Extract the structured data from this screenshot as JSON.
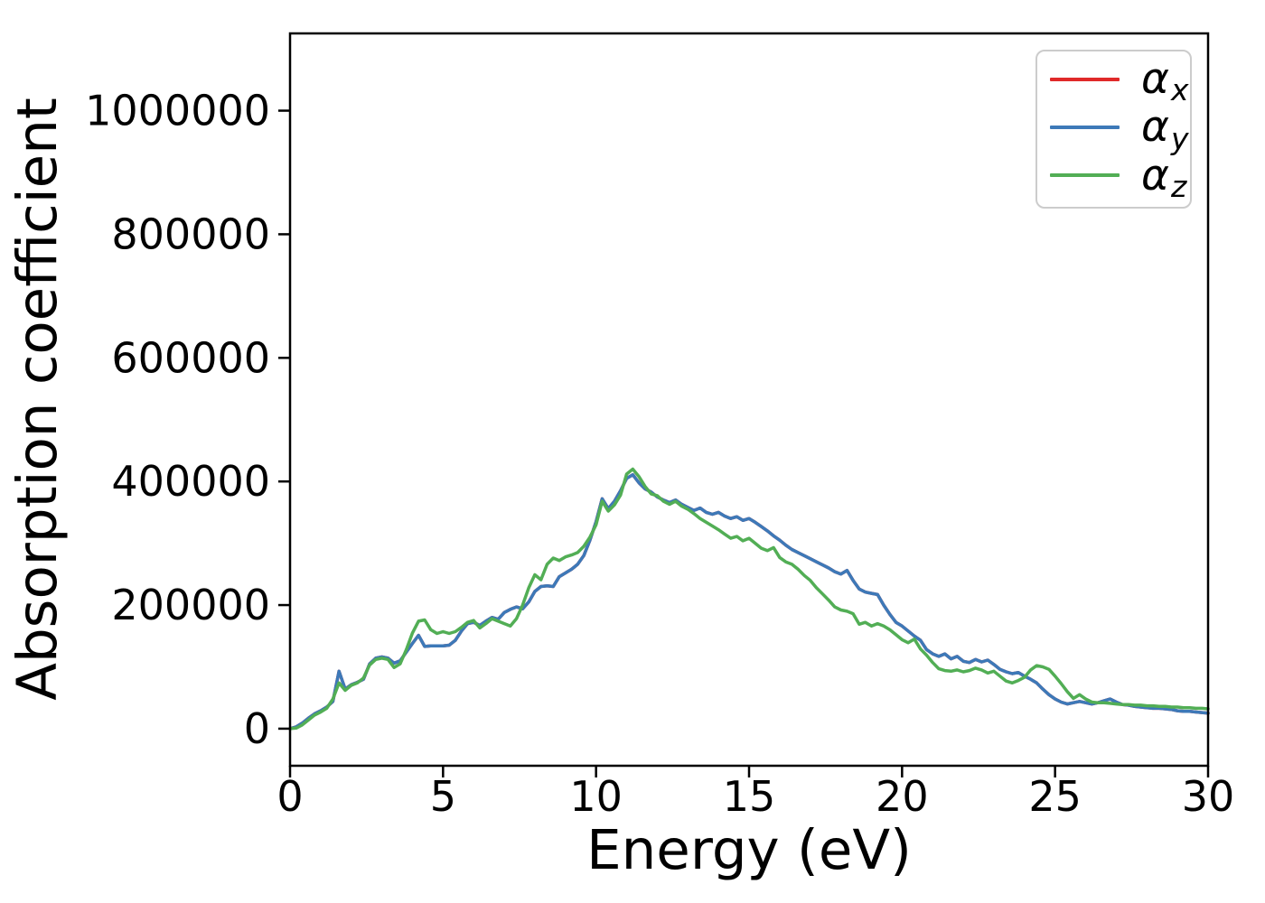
{
  "figure": {
    "background": "#ffffff",
    "text_color": "#000000",
    "spine_color": "#000000"
  },
  "chart_data": {
    "type": "line",
    "title": "",
    "xlabel": "Energy (eV)",
    "ylabel": "Absorption coefficient",
    "xlim": [
      0,
      30
    ],
    "ylim": [
      -60000,
      1125000
    ],
    "xticks": [
      0,
      5,
      10,
      15,
      20,
      25,
      30
    ],
    "yticks": [
      0,
      200000,
      400000,
      600000,
      800000,
      1000000
    ],
    "grid": false,
    "legend_position": "upper right",
    "x": {
      "start": 0,
      "step": 0.2,
      "count": 151
    },
    "series": [
      {
        "name_base": "α",
        "name_sub": "x",
        "color": "#e02929",
        "values": [
          0,
          3000,
          9000,
          17000,
          24000,
          29000,
          35000,
          44000,
          93000,
          64000,
          71000,
          75000,
          80000,
          105000,
          114000,
          116000,
          114000,
          106000,
          110000,
          124000,
          138000,
          151000,
          133000,
          134000,
          134000,
          134000,
          135000,
          143000,
          158000,
          170000,
          172000,
          167000,
          174000,
          180000,
          177000,
          188000,
          193000,
          197000,
          194000,
          205000,
          222000,
          230000,
          231000,
          230000,
          246000,
          252000,
          258000,
          266000,
          280000,
          305000,
          335000,
          372000,
          356000,
          368000,
          385000,
          405000,
          411000,
          398000,
          388000,
          383000,
          375000,
          370000,
          366000,
          370000,
          363000,
          358000,
          353000,
          357000,
          350000,
          347000,
          350000,
          344000,
          340000,
          343000,
          337000,
          340000,
          334000,
          327000,
          320000,
          312000,
          305000,
          297000,
          290000,
          285000,
          280000,
          275000,
          270000,
          265000,
          260000,
          254000,
          250000,
          256000,
          240000,
          226000,
          221000,
          219000,
          217000,
          200000,
          185000,
          172000,
          166000,
          158000,
          150000,
          143000,
          128000,
          121000,
          117000,
          121000,
          113000,
          117000,
          109000,
          107000,
          112000,
          108000,
          111000,
          104000,
          96000,
          92000,
          89000,
          91000,
          85000,
          80000,
          74000,
          64000,
          55000,
          48000,
          43000,
          40000,
          42000,
          44000,
          42000,
          40000,
          42000,
          45000,
          48000,
          43000,
          39000,
          38000,
          36000,
          35000,
          34000,
          33000,
          33000,
          32000,
          31000,
          29000,
          28000,
          28000,
          27000,
          26000,
          25000
        ]
      },
      {
        "name_base": "α",
        "name_sub": "y",
        "color": "#3d79b8",
        "values": [
          0,
          3000,
          9000,
          17000,
          24000,
          29000,
          35000,
          44000,
          93000,
          64000,
          71000,
          75000,
          80000,
          105000,
          114000,
          116000,
          114000,
          106000,
          110000,
          124000,
          138000,
          151000,
          133000,
          134000,
          134000,
          134000,
          135000,
          143000,
          158000,
          170000,
          172000,
          167000,
          174000,
          180000,
          177000,
          188000,
          193000,
          197000,
          194000,
          205000,
          222000,
          230000,
          231000,
          230000,
          246000,
          252000,
          258000,
          266000,
          280000,
          305000,
          335000,
          372000,
          356000,
          368000,
          385000,
          405000,
          411000,
          398000,
          388000,
          383000,
          375000,
          370000,
          366000,
          370000,
          363000,
          358000,
          353000,
          357000,
          350000,
          347000,
          350000,
          344000,
          340000,
          343000,
          337000,
          340000,
          334000,
          327000,
          320000,
          312000,
          305000,
          297000,
          290000,
          285000,
          280000,
          275000,
          270000,
          265000,
          260000,
          254000,
          250000,
          256000,
          240000,
          226000,
          221000,
          219000,
          217000,
          200000,
          185000,
          172000,
          166000,
          158000,
          150000,
          143000,
          128000,
          121000,
          117000,
          121000,
          113000,
          117000,
          109000,
          107000,
          112000,
          108000,
          111000,
          104000,
          96000,
          92000,
          89000,
          91000,
          85000,
          80000,
          74000,
          64000,
          55000,
          48000,
          43000,
          40000,
          42000,
          44000,
          42000,
          40000,
          42000,
          45000,
          48000,
          43000,
          39000,
          38000,
          36000,
          35000,
          34000,
          33000,
          33000,
          32000,
          31000,
          29000,
          28000,
          28000,
          27000,
          26000,
          25000
        ]
      },
      {
        "name_base": "α",
        "name_sub": "z",
        "color": "#52ae55",
        "values": [
          0,
          1000,
          6000,
          14000,
          22000,
          27000,
          33000,
          48000,
          74000,
          62000,
          70000,
          74000,
          82000,
          103000,
          112000,
          114000,
          112000,
          99000,
          105000,
          128000,
          155000,
          174000,
          176000,
          160000,
          154000,
          157000,
          154000,
          157000,
          164000,
          172000,
          175000,
          163000,
          170000,
          178000,
          174000,
          170000,
          166000,
          178000,
          200000,
          228000,
          249000,
          241000,
          266000,
          276000,
          272000,
          278000,
          281000,
          285000,
          295000,
          310000,
          330000,
          368000,
          352000,
          362000,
          378000,
          412000,
          420000,
          408000,
          392000,
          380000,
          377000,
          368000,
          363000,
          368000,
          360000,
          355000,
          348000,
          340000,
          334000,
          328000,
          322000,
          315000,
          308000,
          311000,
          304000,
          308000,
          300000,
          292000,
          288000,
          293000,
          277000,
          270000,
          266000,
          258000,
          248000,
          240000,
          228000,
          218000,
          208000,
          197000,
          192000,
          190000,
          186000,
          169000,
          172000,
          166000,
          170000,
          166000,
          160000,
          152000,
          144000,
          139000,
          145000,
          129000,
          119000,
          107000,
          97000,
          94000,
          93000,
          95000,
          92000,
          94000,
          98000,
          95000,
          90000,
          93000,
          85000,
          77000,
          74000,
          78000,
          83000,
          95000,
          102000,
          100000,
          96000,
          85000,
          73000,
          60000,
          49000,
          55000,
          48000,
          43000,
          42000,
          42000,
          41000,
          40000,
          39000,
          39000,
          38000,
          38000,
          37000,
          37000,
          36000,
          36000,
          35000,
          35000,
          34000,
          34000,
          33000,
          33000,
          32000
        ]
      }
    ]
  }
}
